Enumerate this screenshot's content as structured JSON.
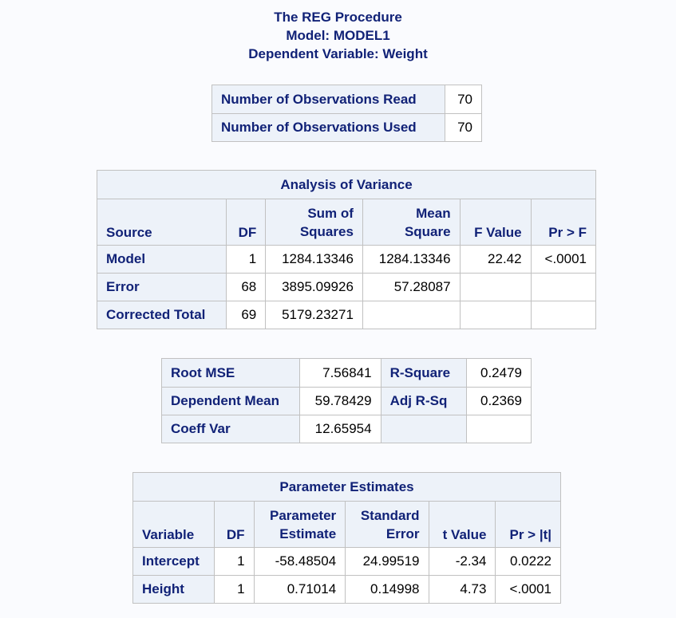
{
  "titles": {
    "procedure": "The REG Procedure",
    "model": "Model: MODEL1",
    "dependent": "Dependent Variable: Weight"
  },
  "observations": {
    "rows": [
      {
        "label": "Number of Observations Read",
        "value": "70"
      },
      {
        "label": "Number of Observations Used",
        "value": "70"
      }
    ]
  },
  "anova": {
    "title": "Analysis of Variance",
    "headers": {
      "source": "Source",
      "df": "DF",
      "ss_line1": "Sum of",
      "ss_line2": "Squares",
      "ms_line1": "Mean",
      "ms_line2": "Square",
      "f": "F Value",
      "p": "Pr > F"
    },
    "rows": [
      {
        "source": "Model",
        "df": "1",
        "ss": "1284.13346",
        "ms": "1284.13346",
        "f": "22.42",
        "p": "<.0001"
      },
      {
        "source": "Error",
        "df": "68",
        "ss": "3895.09926",
        "ms": "57.28087",
        "f": "",
        "p": ""
      },
      {
        "source": "Corrected Total",
        "df": "69",
        "ss": "5179.23271",
        "ms": "",
        "f": "",
        "p": ""
      }
    ]
  },
  "fit": {
    "rows": [
      {
        "label1": "Root MSE",
        "value1": "7.56841",
        "label2": "R-Square",
        "value2": "0.2479"
      },
      {
        "label1": "Dependent Mean",
        "value1": "59.78429",
        "label2": "Adj R-Sq",
        "value2": "0.2369"
      },
      {
        "label1": "Coeff Var",
        "value1": "12.65954",
        "label2": "",
        "value2": ""
      }
    ]
  },
  "params": {
    "title": "Parameter Estimates",
    "headers": {
      "variable": "Variable",
      "df": "DF",
      "est_line1": "Parameter",
      "est_line2": "Estimate",
      "se_line1": "Standard",
      "se_line2": "Error",
      "t": "t Value",
      "p": "Pr > |t|"
    },
    "rows": [
      {
        "variable": "Intercept",
        "df": "1",
        "est": "-58.48504",
        "se": "24.99519",
        "t": "-2.34",
        "p": "0.0222"
      },
      {
        "variable": "Height",
        "df": "1",
        "est": "0.71014",
        "se": "0.14998",
        "t": "4.73",
        "p": "<.0001"
      }
    ]
  }
}
